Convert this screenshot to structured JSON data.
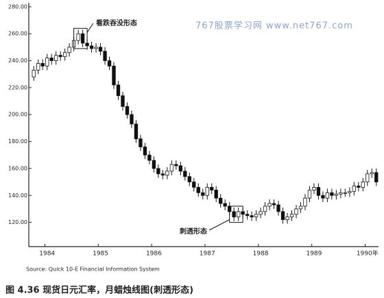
{
  "chart_data": {
    "type": "candlestick",
    "watermark": "767股票学习网 www.net767.com",
    "source": "Source: Quick 10-E Financial Information System",
    "caption": "图 4.36  现货日元汇率，月蜡烛线图(刺透形态)",
    "annotations": [
      "看跌吞没形态",
      "刺透形态"
    ],
    "categories": [
      null,
      null,
      null,
      "1984",
      null,
      null,
      null,
      null,
      null,
      null,
      null,
      null,
      null,
      null,
      null,
      "1985",
      null,
      null,
      null,
      null,
      null,
      null,
      null,
      null,
      null,
      null,
      null,
      "1986",
      null,
      null,
      null,
      null,
      null,
      null,
      null,
      null,
      null,
      null,
      null,
      "1987",
      null,
      null,
      null,
      null,
      null,
      null,
      null,
      null,
      null,
      null,
      null,
      "1988",
      null,
      null,
      null,
      null,
      null,
      null,
      null,
      null,
      null,
      null,
      null,
      "1989",
      null,
      null,
      null,
      null,
      null,
      null,
      null,
      null,
      null,
      null,
      null,
      "1990年",
      null,
      null
    ],
    "open": [
      228,
      233,
      238,
      236,
      242,
      240,
      244,
      243,
      246,
      250,
      255,
      260,
      253,
      251,
      249,
      250,
      247,
      240,
      236,
      222,
      214,
      206,
      200,
      193,
      182,
      176,
      170,
      166,
      160,
      156,
      155,
      158,
      163,
      162,
      158,
      154,
      150,
      146,
      142,
      140,
      146,
      144,
      138,
      134,
      132,
      128,
      124,
      128,
      126,
      125,
      124,
      126,
      128,
      132,
      134,
      133,
      128,
      122,
      124,
      126,
      130,
      132,
      138,
      144,
      146,
      140,
      138,
      142,
      140,
      141,
      142,
      142,
      143,
      147,
      146,
      150,
      156,
      157
    ],
    "high": [
      236,
      241,
      241,
      245,
      245,
      247,
      247,
      249,
      253,
      258,
      263,
      263,
      256,
      254,
      253,
      253,
      250,
      243,
      239,
      225,
      217,
      209,
      203,
      196,
      185,
      179,
      173,
      169,
      163,
      159,
      161,
      166,
      166,
      165,
      161,
      157,
      153,
      149,
      145,
      149,
      149,
      147,
      141,
      137,
      135,
      131,
      131,
      131,
      129,
      128,
      129,
      131,
      135,
      137,
      137,
      136,
      131,
      127,
      129,
      133,
      135,
      141,
      147,
      149,
      149,
      143,
      145,
      145,
      144,
      145,
      145,
      146,
      150,
      150,
      153,
      159,
      160,
      160
    ],
    "low": [
      225,
      230,
      233,
      233,
      237,
      237,
      240,
      240,
      243,
      247,
      252,
      250,
      248,
      246,
      246,
      244,
      237,
      233,
      219,
      211,
      203,
      197,
      190,
      179,
      173,
      167,
      163,
      157,
      153,
      152,
      152,
      155,
      159,
      155,
      151,
      147,
      143,
      139,
      137,
      137,
      141,
      135,
      131,
      129,
      125,
      121,
      121,
      123,
      122,
      121,
      121,
      123,
      125,
      129,
      130,
      125,
      119,
      119,
      121,
      123,
      127,
      129,
      135,
      141,
      137,
      135,
      135,
      137,
      137,
      138,
      139,
      139,
      140,
      143,
      143,
      147,
      153,
      147
    ],
    "close": [
      233,
      238,
      236,
      242,
      240,
      244,
      243,
      246,
      250,
      255,
      260,
      253,
      251,
      249,
      250,
      247,
      240,
      236,
      222,
      214,
      206,
      200,
      193,
      182,
      176,
      170,
      166,
      160,
      156,
      155,
      158,
      163,
      162,
      158,
      154,
      150,
      146,
      142,
      140,
      146,
      144,
      138,
      134,
      132,
      128,
      124,
      128,
      126,
      125,
      124,
      126,
      128,
      132,
      134,
      133,
      128,
      122,
      124,
      126,
      130,
      132,
      138,
      144,
      146,
      140,
      138,
      142,
      140,
      141,
      142,
      142,
      143,
      147,
      146,
      150,
      156,
      157,
      150
    ],
    "ylim": [
      102,
      283
    ],
    "yticks": [
      {
        "value": 120,
        "label": "120.00"
      },
      {
        "value": 140,
        "label": "140.00"
      },
      {
        "value": 160,
        "label": "160.00"
      },
      {
        "value": 180,
        "label": "180.00"
      },
      {
        "value": 200,
        "label": "200.00"
      },
      {
        "value": 220,
        "label": "220.00"
      },
      {
        "value": 240,
        "label": "240.00"
      },
      {
        "value": 260,
        "label": "260.00"
      },
      {
        "value": 280,
        "label": "280.00"
      }
    ],
    "rise_color": "#ffffff",
    "fall_color": "#111111"
  }
}
